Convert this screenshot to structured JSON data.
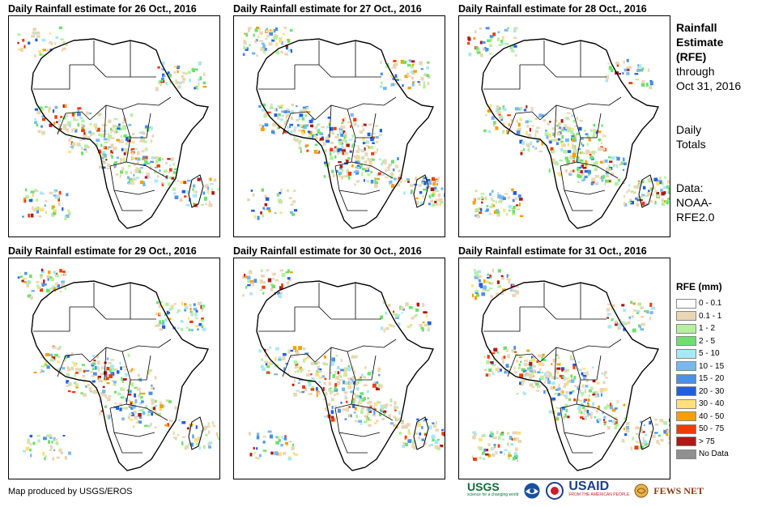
{
  "panels": [
    {
      "title": "Daily Rainfall estimate for 26 Oct., 2016"
    },
    {
      "title": "Daily Rainfall estimate for 27 Oct., 2016"
    },
    {
      "title": "Daily Rainfall estimate for 28 Oct., 2016"
    },
    {
      "title": "Daily Rainfall estimate for 29 Oct., 2016"
    },
    {
      "title": "Daily Rainfall estimate for 30 Oct., 2016"
    },
    {
      "title": "Daily Rainfall estimate for 31 Oct., 2016"
    }
  ],
  "side": {
    "title_line1": "Rainfall",
    "title_line2": "Estimate",
    "title_line3": "(RFE)",
    "through": "through",
    "through_date": "Oct 31, 2016",
    "totals_line1": "Daily",
    "totals_line2": "Totals",
    "data_line1": "Data:",
    "data_line2": "NOAA-",
    "data_line3": "RFE2.0"
  },
  "legend": {
    "title": "RFE (mm)",
    "items": [
      {
        "label": "0 - 0.1",
        "color": "#ffffff"
      },
      {
        "label": "0.1 - 1",
        "color": "#e8d6b4"
      },
      {
        "label": "1 - 2",
        "color": "#b4f0a0"
      },
      {
        "label": "2 - 5",
        "color": "#6ee06e"
      },
      {
        "label": "5 - 10",
        "color": "#a8e8f8"
      },
      {
        "label": "10 - 15",
        "color": "#78b8f0"
      },
      {
        "label": "15 - 20",
        "color": "#4890e8"
      },
      {
        "label": "20 - 30",
        "color": "#2060e0"
      },
      {
        "label": "30 - 40",
        "color": "#ffe07a"
      },
      {
        "label": "40 - 50",
        "color": "#f5a000"
      },
      {
        "label": "50 - 75",
        "color": "#f03c00"
      },
      {
        "label": "> 75",
        "color": "#b01818"
      },
      {
        "label": "No Data",
        "color": "#909090"
      }
    ]
  },
  "credit": "Map produced by USGS/EROS",
  "logos": {
    "usgs": "USGS",
    "usgs_tagline": "science for a changing world",
    "noaa": "NOAA",
    "usaid": "USAID",
    "usaid_tagline": "FROM THE AMERICAN PEOPLE",
    "fewsnet": "FEWS NET"
  }
}
